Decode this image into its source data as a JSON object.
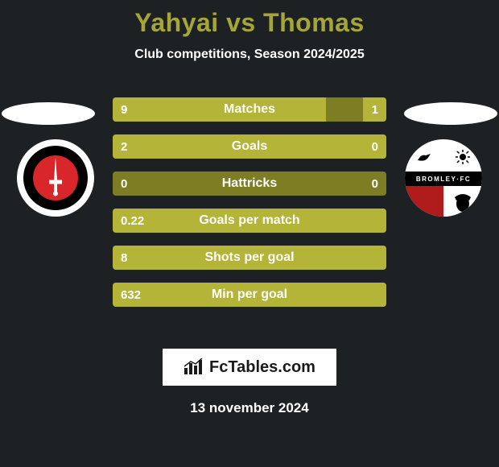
{
  "title": "Yahyai vs Thomas",
  "subtitle": "Club competitions, Season 2024/2025",
  "date": "13 november 2024",
  "fctables_label": "FcTables.com",
  "colors": {
    "background": "#1d2123",
    "accent": "#a5a637",
    "bar_base": "#7d7e24",
    "bar_left": "#b3b438",
    "bar_right": "#b3b438",
    "text": "#ffffff"
  },
  "team_left": {
    "name": "Charlton Athletic",
    "badge_bg": "#000000",
    "badge_ring": "#ffffff",
    "badge_core": "#d8262a"
  },
  "team_right": {
    "name": "Bromley FC",
    "badge_ring": "#ffffff",
    "band_bg": "#000000",
    "bl_bg": "#b01b1b"
  },
  "bars": [
    {
      "label": "Matches",
      "left": "9",
      "right": "1",
      "left_ratio": 0.78,
      "right_ratio": 0.085
    },
    {
      "label": "Goals",
      "left": "2",
      "right": "0",
      "left_ratio": 1.0,
      "right_ratio": 0.0
    },
    {
      "label": "Hattricks",
      "left": "0",
      "right": "0",
      "left_ratio": 0.0,
      "right_ratio": 0.0
    },
    {
      "label": "Goals per match",
      "left": "0.22",
      "right": "",
      "left_ratio": 1.0,
      "right_ratio": 0.0
    },
    {
      "label": "Shots per goal",
      "left": "8",
      "right": "",
      "left_ratio": 1.0,
      "right_ratio": 0.0
    },
    {
      "label": "Min per goal",
      "left": "632",
      "right": "",
      "left_ratio": 1.0,
      "right_ratio": 0.0
    }
  ],
  "bar_style": {
    "height": 30,
    "gap": 16,
    "border_radius": 4,
    "font_size": 16
  }
}
